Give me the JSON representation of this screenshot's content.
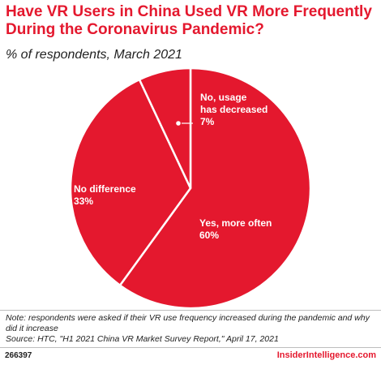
{
  "header": {
    "title": "Have VR Users in China Used VR More Frequently During the Coronavirus Pandemic?",
    "subtitle": "% of respondents, March 2021"
  },
  "chart_data": {
    "type": "pie",
    "title": "Have VR Users in China Used VR More Frequently During the Coronavirus Pandemic?",
    "subtitle": "% of respondents, March 2021",
    "color": "#e4182e",
    "slices": [
      {
        "label_lines": [
          "Yes, more often"
        ],
        "value": 60,
        "value_label": "60%"
      },
      {
        "label_lines": [
          "No difference"
        ],
        "value": 33,
        "value_label": "33%"
      },
      {
        "label_lines": [
          "No, usage",
          "has decreased"
        ],
        "value": 7,
        "value_label": "7%"
      }
    ]
  },
  "notes": {
    "note": "Note: respondents were asked if their VR use frequency increased during the pandemic and why did it increase",
    "source": "Source: HTC, \"H1 2021 China VR Market Survey Report,\" April 17, 2021"
  },
  "footer": {
    "chart_id": "266397",
    "brand": "InsiderIntelligence.com"
  }
}
